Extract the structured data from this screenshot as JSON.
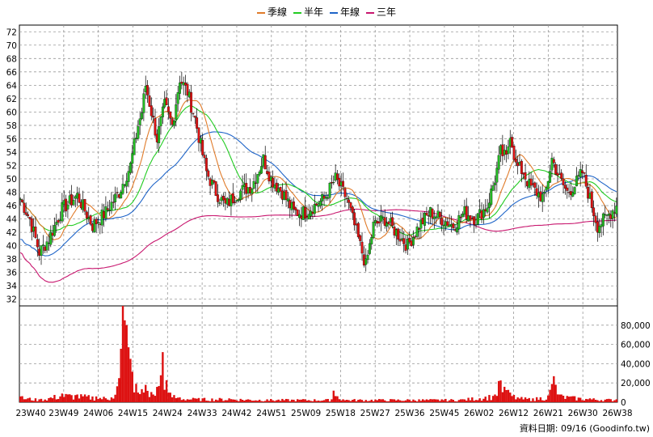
{
  "chart_data": {
    "type": "candlestick",
    "legend": [
      {
        "name": "季線",
        "color": "#e07b2a"
      },
      {
        "name": "半年",
        "color": "#22cc22"
      },
      {
        "name": "年線",
        "color": "#1e64c8"
      },
      {
        "name": "三年",
        "color": "#c8166e"
      }
    ],
    "x_ticks": [
      "23W40",
      "23W49",
      "24W06",
      "24W15",
      "24W24",
      "24W33",
      "24W42",
      "24W51",
      "25W09",
      "25W18",
      "25W27",
      "25W36",
      "25W45",
      "26W02",
      "26W12",
      "26W21",
      "26W30",
      "26W38"
    ],
    "price_axis": {
      "min": 31,
      "max": 73,
      "ticks": [
        32,
        34,
        36,
        38,
        40,
        42,
        44,
        46,
        48,
        50,
        52,
        54,
        56,
        58,
        60,
        62,
        64,
        66,
        68,
        70,
        72
      ]
    },
    "volume_axis": {
      "min": 0,
      "max": 100000,
      "ticks": [
        0,
        20000,
        40000,
        60000,
        80000
      ],
      "tick_labels": [
        "0",
        "20,000",
        "40,000",
        "60,000",
        "80,000"
      ]
    },
    "up_color": "#22bb22",
    "down_color": "#dd1111",
    "price_keypoints": [
      [
        0,
        47
      ],
      [
        5,
        44
      ],
      [
        10,
        39
      ],
      [
        15,
        41
      ],
      [
        22,
        45.5
      ],
      [
        30,
        47.5
      ],
      [
        38,
        43
      ],
      [
        45,
        45
      ],
      [
        52,
        48
      ],
      [
        58,
        52
      ],
      [
        62,
        58
      ],
      [
        64,
        60
      ],
      [
        66,
        64
      ],
      [
        69,
        60
      ],
      [
        72,
        56
      ],
      [
        76,
        61
      ],
      [
        80,
        58
      ],
      [
        84,
        65
      ],
      [
        88,
        63
      ],
      [
        92,
        59
      ],
      [
        95,
        55
      ],
      [
        98,
        51
      ],
      [
        103,
        48
      ],
      [
        108,
        46
      ],
      [
        115,
        48
      ],
      [
        122,
        49
      ],
      [
        128,
        53
      ],
      [
        132,
        50
      ],
      [
        138,
        48
      ],
      [
        144,
        45
      ],
      [
        150,
        45
      ],
      [
        160,
        47
      ],
      [
        166,
        50
      ],
      [
        172,
        47
      ],
      [
        178,
        41
      ],
      [
        182,
        37
      ],
      [
        186,
        43
      ],
      [
        192,
        44
      ],
      [
        198,
        42
      ],
      [
        204,
        40
      ],
      [
        210,
        43
      ],
      [
        216,
        45
      ],
      [
        222,
        44
      ],
      [
        228,
        43
      ],
      [
        234,
        45
      ],
      [
        240,
        44
      ],
      [
        246,
        46
      ],
      [
        250,
        50
      ],
      [
        253,
        54
      ],
      [
        256,
        53
      ],
      [
        258,
        57
      ],
      [
        261,
        52
      ],
      [
        265,
        51
      ],
      [
        268,
        49
      ],
      [
        272,
        48
      ],
      [
        276,
        47
      ],
      [
        280,
        53
      ],
      [
        284,
        50
      ],
      [
        288,
        48
      ],
      [
        292,
        49
      ],
      [
        296,
        51
      ],
      [
        300,
        47
      ],
      [
        304,
        43
      ],
      [
        308,
        44
      ],
      [
        314,
        46
      ]
    ],
    "volume_keypoints": [
      [
        0,
        6000
      ],
      [
        10,
        3000
      ],
      [
        22,
        9000
      ],
      [
        30,
        8000
      ],
      [
        40,
        6000
      ],
      [
        48,
        5000
      ],
      [
        52,
        25000
      ],
      [
        54,
        100000
      ],
      [
        56,
        80000
      ],
      [
        58,
        45000
      ],
      [
        62,
        10000
      ],
      [
        66,
        18000
      ],
      [
        70,
        8000
      ],
      [
        74,
        28000
      ],
      [
        75,
        52000
      ],
      [
        78,
        10000
      ],
      [
        84,
        5000
      ],
      [
        92,
        4000
      ],
      [
        110,
        4000
      ],
      [
        130,
        3000
      ],
      [
        150,
        3000
      ],
      [
        164,
        3000
      ],
      [
        165,
        12000
      ],
      [
        170,
        3000
      ],
      [
        190,
        3000
      ],
      [
        210,
        3000
      ],
      [
        222,
        3000
      ],
      [
        232,
        3000
      ],
      [
        250,
        8000
      ],
      [
        252,
        22000
      ],
      [
        255,
        16000
      ],
      [
        258,
        10000
      ],
      [
        262,
        5000
      ],
      [
        270,
        4000
      ],
      [
        278,
        7000
      ],
      [
        281,
        27000
      ],
      [
        284,
        8000
      ],
      [
        290,
        6000
      ],
      [
        300,
        4000
      ],
      [
        314,
        3000
      ]
    ]
  },
  "footnote": "資料日期: 09/16  (Goodinfo.tw)"
}
